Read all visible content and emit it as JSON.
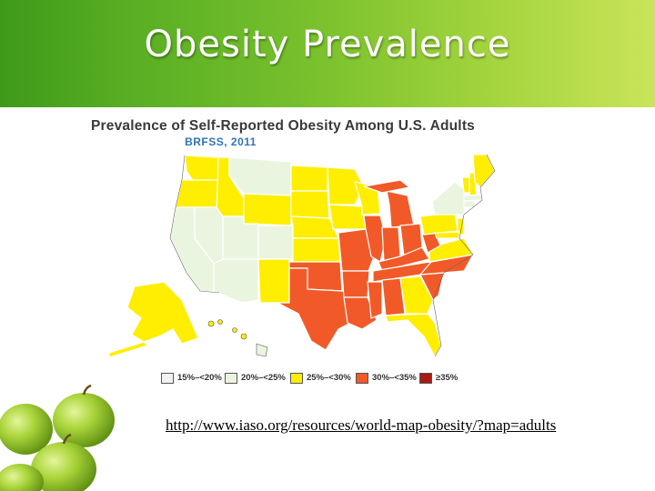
{
  "slide": {
    "title": "Obesity Prevalence"
  },
  "map": {
    "title": "Prevalence of Self-Reported Obesity Among U.S. Adults",
    "subtitle": "BRFSS, 2011",
    "legend": [
      {
        "label": "15%–<20%",
        "color": "#f2f2f2"
      },
      {
        "label": "20%–<25%",
        "color": "#eaf5df"
      },
      {
        "label": "25%–<30%",
        "color": "#ffee00"
      },
      {
        "label": "30%–<35%",
        "color": "#f15a28"
      },
      {
        "label": "≥35%",
        "color": "#a61b12"
      }
    ]
  },
  "source_link": "http://www.iaso.org/resources/world-map-obesity/?map=adults"
}
